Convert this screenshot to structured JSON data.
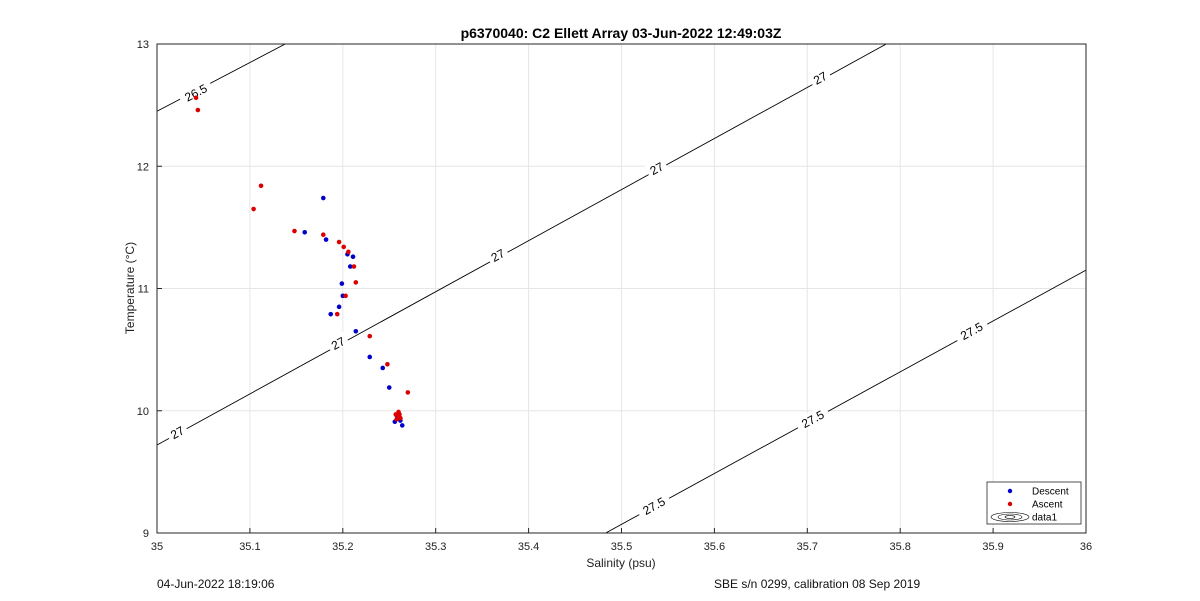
{
  "chart_data": {
    "type": "scatter",
    "title": "p6370040: C2 Ellett Array 03-Jun-2022 12:49:03Z",
    "xlabel": "Salinity (psu)",
    "ylabel": "Temperature (°C)",
    "xlim": [
      35,
      36
    ],
    "ylim": [
      9,
      13
    ],
    "xticks": [
      "35",
      "35.1",
      "35.2",
      "35.3",
      "35.4",
      "35.5",
      "35.6",
      "35.7",
      "35.8",
      "35.9",
      "36"
    ],
    "yticks": [
      "9",
      "10",
      "11",
      "12",
      "13"
    ],
    "grid": true,
    "legend_position": "bottom-right",
    "series": [
      {
        "name": "Descent",
        "color": "#0000cc",
        "points": [
          [
            35.179,
            11.74
          ],
          [
            35.159,
            11.46
          ],
          [
            35.182,
            11.4
          ],
          [
            35.205,
            11.28
          ],
          [
            35.211,
            11.26
          ],
          [
            35.208,
            11.18
          ],
          [
            35.199,
            11.04
          ],
          [
            35.2,
            10.94
          ],
          [
            35.196,
            10.85
          ],
          [
            35.187,
            10.79
          ],
          [
            35.214,
            10.65
          ],
          [
            35.229,
            10.44
          ],
          [
            35.243,
            10.35
          ],
          [
            35.25,
            10.19
          ],
          [
            35.258,
            9.96
          ],
          [
            35.262,
            9.92
          ],
          [
            35.264,
            9.88
          ],
          [
            35.256,
            9.91
          ]
        ]
      },
      {
        "name": "Ascent",
        "color": "#dd0000",
        "points": [
          [
            35.042,
            12.56
          ],
          [
            35.044,
            12.46
          ],
          [
            35.112,
            11.84
          ],
          [
            35.104,
            11.65
          ],
          [
            35.148,
            11.47
          ],
          [
            35.179,
            11.44
          ],
          [
            35.196,
            11.38
          ],
          [
            35.201,
            11.34
          ],
          [
            35.206,
            11.3
          ],
          [
            35.212,
            11.18
          ],
          [
            35.214,
            11.05
          ],
          [
            35.203,
            10.94
          ],
          [
            35.194,
            10.79
          ],
          [
            35.229,
            10.61
          ],
          [
            35.248,
            10.38
          ],
          [
            35.27,
            10.15
          ],
          [
            35.26,
            9.99
          ],
          [
            35.261,
            9.97
          ],
          [
            35.259,
            9.95
          ],
          [
            35.258,
            9.93
          ],
          [
            35.262,
            9.94
          ],
          [
            35.257,
            9.97
          ]
        ]
      }
    ],
    "contours": [
      {
        "label": "26.5",
        "line": [
          [
            35.0,
            12.45
          ],
          [
            35.138,
            13.0
          ]
        ],
        "label_positions": [
          [
            35.042,
            12.6
          ]
        ]
      },
      {
        "label": "27",
        "line": [
          [
            35.0,
            9.72
          ],
          [
            35.785,
            13.0
          ]
        ],
        "label_positions": [
          [
            35.022,
            9.82
          ],
          [
            35.195,
            10.55
          ],
          [
            35.367,
            11.27
          ],
          [
            35.538,
            11.98
          ],
          [
            35.714,
            12.72
          ]
        ]
      },
      {
        "label": "27.5",
        "line": [
          [
            35.483,
            9.0
          ],
          [
            36.0,
            11.15
          ]
        ],
        "label_positions": [
          [
            35.535,
            9.22
          ],
          [
            35.706,
            9.93
          ],
          [
            35.877,
            10.65
          ]
        ]
      }
    ],
    "legend_entries": [
      "Descent",
      "Ascent",
      "data1"
    ]
  },
  "footer": {
    "left": "04-Jun-2022 18:19:06",
    "right": "SBE s/n 0299, calibration 08 Sep 2019"
  }
}
